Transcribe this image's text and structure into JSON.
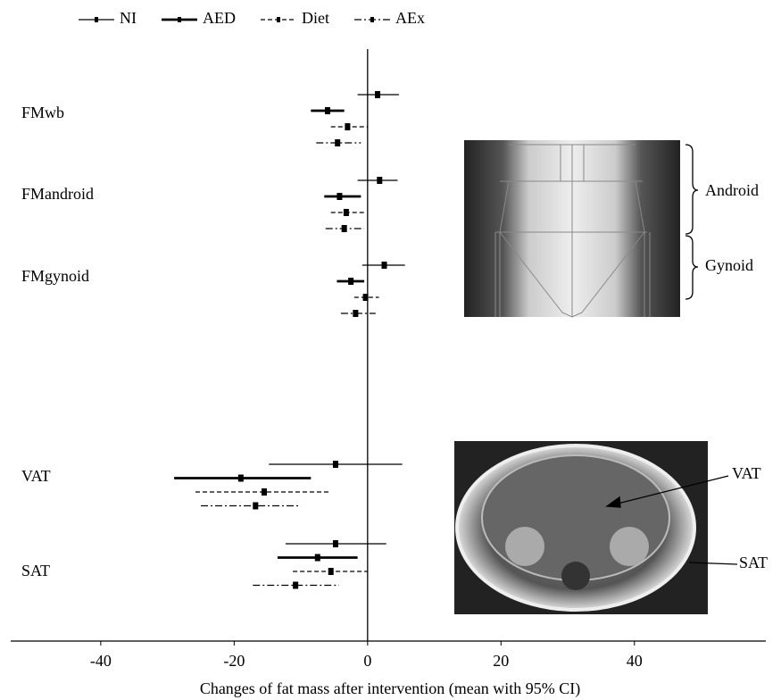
{
  "chart_data": {
    "type": "forest",
    "x_label": "Changes of fat mass after intervention (mean with 95% CI)",
    "categories": [
      "FMwb",
      "FMandroid",
      "FMgynoid",
      "VAT",
      "SAT"
    ],
    "xlim": [
      -53.5,
      59.7
    ],
    "xticks": [
      -40,
      -20,
      0,
      20,
      40
    ],
    "series": [
      {
        "name": "NI",
        "color": "#000",
        "line_style": "solid",
        "line_width": 1.3,
        "values": [
          1.5,
          1.8,
          2.5,
          -4.8,
          -4.8
        ],
        "lower": [
          -1.5,
          -1.5,
          -0.8,
          -14.8,
          -12.3
        ],
        "upper": [
          4.7,
          4.5,
          5.6,
          5.2,
          2.8
        ]
      },
      {
        "name": "AED",
        "color": "#000",
        "line_style": "solid",
        "line_width": 2.8,
        "values": [
          -6,
          -4.2,
          -2.5,
          -19,
          -7.5
        ],
        "lower": [
          -8.5,
          -6.5,
          -4.6,
          -29,
          -13.5
        ],
        "upper": [
          -3.5,
          -1,
          -0.5,
          -8.5,
          -1.5
        ]
      },
      {
        "name": "Diet",
        "color": "#000",
        "line_style": "dashed",
        "line_width": 1.3,
        "values": [
          -3,
          -3.2,
          -0.3,
          -15.5,
          -5.5
        ],
        "lower": [
          -5.5,
          -5.5,
          -2,
          -25.8,
          -11.2
        ],
        "upper": [
          0,
          -0.5,
          1.7,
          -5.5,
          0
        ]
      },
      {
        "name": "AEx",
        "color": "#000",
        "line_style": "dashdot",
        "line_width": 1.3,
        "values": [
          -4.5,
          -3.5,
          -1.8,
          -16.8,
          -10.8
        ],
        "lower": [
          -7.7,
          -6.3,
          -4,
          -25,
          -17.2
        ],
        "upper": [
          -1,
          -0.5,
          1.2,
          -10,
          -4.3
        ]
      }
    ],
    "annotations": [
      "Android",
      "Gynoid",
      "VAT",
      "SAT"
    ]
  }
}
